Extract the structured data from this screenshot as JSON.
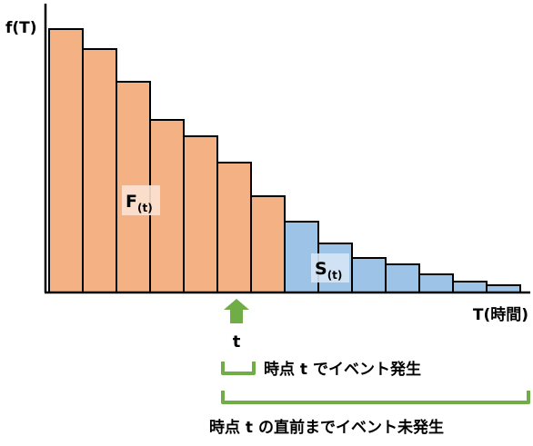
{
  "axis": {
    "y_label": "f(T)",
    "x_label": "T(時間)"
  },
  "regions": {
    "cdf_main": "F",
    "cdf_sub": "(t)",
    "survival_main": "S",
    "survival_sub": "(t)"
  },
  "marker": {
    "label": "t"
  },
  "annotations": {
    "short_bracket": "時点 t でイベント発生",
    "long_bracket": "時点 t の直前までイベント未発生"
  },
  "colors": {
    "before_t": "#F4B183",
    "after_t": "#9DC3E6",
    "arrow": "#70AD47",
    "bracket": "#70AD47",
    "outline": "#000000"
  },
  "chart_data": {
    "type": "bar",
    "bar_values": [
      290,
      268,
      232,
      190,
      172,
      143,
      106,
      78,
      54,
      38,
      31,
      20,
      12,
      8
    ],
    "split_after_bar": 6,
    "ylim": [
      0,
      290
    ]
  }
}
